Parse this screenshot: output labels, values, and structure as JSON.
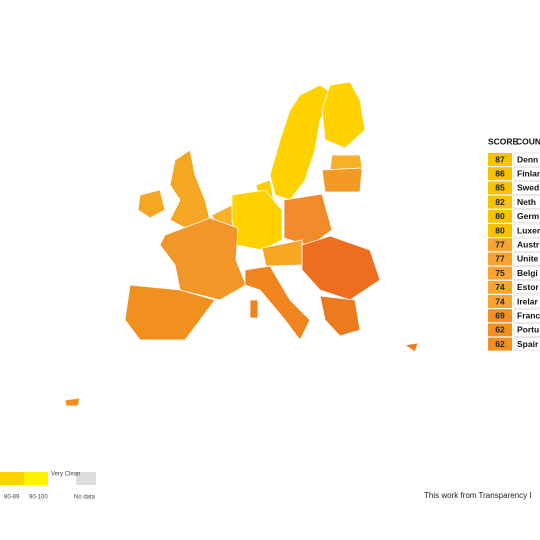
{
  "table": {
    "header": [
      "SCORE",
      "COUNT"
    ],
    "rows": [
      [
        "87",
        "Denn"
      ],
      [
        "86",
        "Finlan"
      ],
      [
        "85",
        "Swed"
      ],
      [
        "82",
        "Neth"
      ],
      [
        "80",
        "Germ"
      ],
      [
        "80",
        "Luxer"
      ],
      [
        "77",
        "Austr"
      ],
      [
        "77",
        "Unite"
      ],
      [
        "75",
        "Belgi"
      ],
      [
        "74",
        "Estor"
      ],
      [
        "74",
        "Irelar"
      ],
      [
        "69",
        "Franc"
      ],
      [
        "62",
        "Portu"
      ],
      [
        "62",
        "Spair"
      ]
    ]
  },
  "legend": {
    "very_clean": "Very Clean",
    "ranges": [
      "80-89",
      "90-100"
    ],
    "no_data": "No data"
  },
  "footer": "This work from Transparency I"
}
